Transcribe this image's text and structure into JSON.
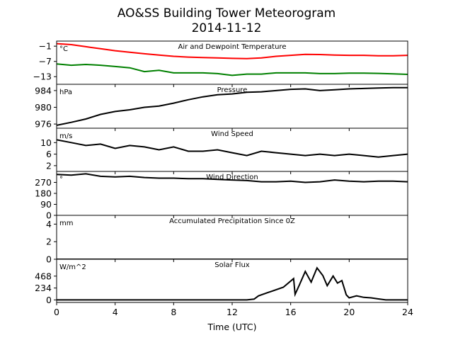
{
  "title_line1": "AO&SS Building Tower Meteorogram",
  "title_line2": "2014-11-12",
  "chart_data": {
    "type": "line",
    "xlabel": "Time (UTC)",
    "xlim": [
      0,
      24
    ],
    "xticks": [
      0,
      4,
      8,
      12,
      16,
      20,
      24
    ],
    "panels": [
      {
        "title": "Air and Dewpoint Temperature",
        "unit": "°C",
        "ylim": [
          -16,
          1
        ],
        "yticks": [
          -1,
          -7,
          -13
        ],
        "series": [
          {
            "color": "#ff0000",
            "x": [
              0,
              1,
              2,
              3,
              4,
              5,
              6,
              7,
              8,
              9,
              10,
              11,
              12,
              13,
              14,
              15,
              16,
              17,
              18,
              19,
              20,
              21,
              22,
              23,
              24
            ],
            "y": [
              0,
              -0.4,
              -1.2,
              -2,
              -2.8,
              -3.4,
              -4,
              -4.5,
              -5,
              -5.3,
              -5.5,
              -5.6,
              -5.8,
              -5.9,
              -5.6,
              -5,
              -4.6,
              -4.2,
              -4.3,
              -4.5,
              -4.6,
              -4.6,
              -4.8,
              -4.8,
              -4.6
            ]
          },
          {
            "color": "#008000",
            "x": [
              0,
              1,
              2,
              3,
              4,
              5,
              6,
              7,
              8,
              9,
              10,
              11,
              12,
              13,
              14,
              15,
              16,
              17,
              18,
              19,
              20,
              21,
              22,
              23,
              24
            ],
            "y": [
              -8,
              -8.5,
              -8.2,
              -8.5,
              -9,
              -9.5,
              -11,
              -10.5,
              -11.5,
              -11.5,
              -11.5,
              -11.8,
              -12.5,
              -12,
              -12,
              -11.5,
              -11.5,
              -11.5,
              -11.8,
              -11.8,
              -11.6,
              -11.6,
              -11.7,
              -11.9,
              -12.1
            ]
          }
        ]
      },
      {
        "title": "Pressure",
        "unit": "hPa",
        "ylim": [
          975,
          985.5
        ],
        "yticks": [
          976,
          980,
          984
        ],
        "series": [
          {
            "color": "#000000",
            "x": [
              0,
              1,
              2,
              3,
              4,
              5,
              6,
              7,
              8,
              9,
              10,
              11,
              12,
              13,
              14,
              15,
              16,
              17,
              18,
              19,
              20,
              21,
              22,
              23,
              24
            ],
            "y": [
              975.7,
              976.4,
              977.2,
              978.3,
              979,
              979.4,
              980,
              980.3,
              981,
              981.8,
              982.5,
              983,
              983.2,
              983.6,
              983.7,
              984,
              984.3,
              984.4,
              984,
              984.2,
              984.4,
              984.5,
              984.6,
              984.7,
              984.7
            ]
          }
        ]
      },
      {
        "title": "Wind Speed",
        "unit": "m/s",
        "ylim": [
          0,
          15
        ],
        "yticks": [
          2,
          6,
          10
        ],
        "series": [
          {
            "color": "#000000",
            "x": [
              0,
              1,
              2,
              3,
              4,
              5,
              6,
              7,
              8,
              9,
              10,
              11,
              12,
              13,
              14,
              15,
              16,
              17,
              18,
              19,
              20,
              21,
              22,
              23,
              24
            ],
            "y": [
              11,
              10,
              9,
              9.5,
              8,
              9,
              8.5,
              7.5,
              8.5,
              7,
              7,
              7.5,
              6.5,
              5.5,
              7,
              6.5,
              6,
              5.5,
              6,
              5.5,
              6,
              5.5,
              5,
              5.5,
              6
            ]
          }
        ]
      },
      {
        "title": "Wind Direction",
        "unit": "°",
        "ylim": [
          0,
          360
        ],
        "yticks": [
          0,
          90,
          180,
          270
        ],
        "series": [
          {
            "color": "#000000",
            "x": [
              0,
              1,
              2,
              3,
              4,
              5,
              6,
              7,
              8,
              9,
              10,
              11,
              12,
              13,
              14,
              15,
              16,
              17,
              18,
              19,
              20,
              21,
              22,
              23,
              24
            ],
            "y": [
              335,
              330,
              340,
              320,
              315,
              320,
              310,
              305,
              305,
              300,
              300,
              295,
              290,
              285,
              275,
              275,
              280,
              270,
              275,
              290,
              280,
              275,
              280,
              280,
              275
            ]
          }
        ]
      },
      {
        "title": "Accumulated Precipitation Since 0Z",
        "unit": "mm",
        "ylim": [
          0,
          5
        ],
        "yticks": [
          0,
          2,
          4
        ],
        "series": [
          {
            "color": "#000000",
            "x": [
              0,
              24
            ],
            "y": [
              0,
              0
            ]
          }
        ]
      },
      {
        "title": "Solar Flux",
        "unit": "W/m^2",
        "ylim": [
          -50,
          800
        ],
        "yticks": [
          0,
          234,
          468
        ],
        "series": [
          {
            "color": "#000000",
            "x": [
              0,
              13,
              13.5,
              13.8,
              14.5,
              15.5,
              16.2,
              16.3,
              16.6,
              17,
              17.4,
              17.8,
              18.2,
              18.5,
              18.9,
              19.2,
              19.5,
              19.8,
              20,
              20.5,
              21,
              21.5,
              22,
              22.5,
              24
            ],
            "y": [
              0,
              0,
              15,
              80,
              150,
              250,
              420,
              110,
              300,
              560,
              350,
              630,
              480,
              280,
              470,
              330,
              380,
              100,
              40,
              80,
              50,
              40,
              20,
              0,
              0
            ]
          }
        ]
      }
    ]
  }
}
